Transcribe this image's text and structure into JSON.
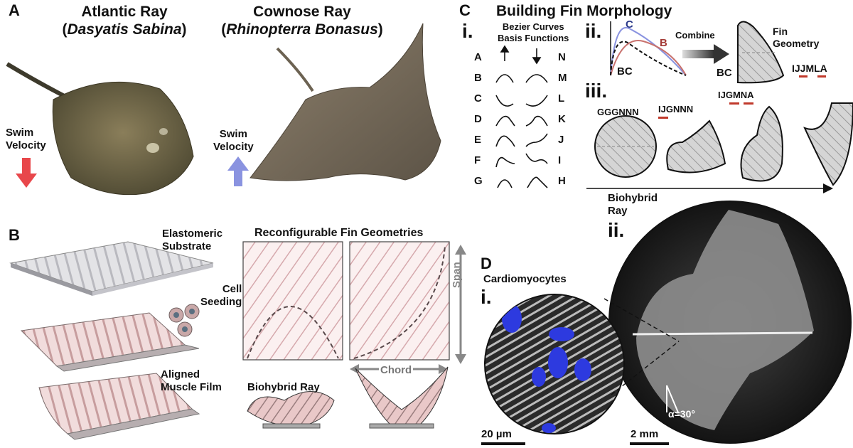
{
  "panel_a": {
    "letter": "A",
    "atlantic": {
      "name": "Atlantic Ray",
      "species_open": "(",
      "species": "Dasyatis Sabina",
      "species_close": ")"
    },
    "cownose": {
      "name": "Cownose Ray",
      "species_open": "(",
      "species": "Rhinopterra Bonasus",
      "species_close": ")"
    },
    "swim_label_1": "Swim",
    "swim_label_2": "Velocity",
    "colors": {
      "atlantic_arrow": "#e8474b",
      "cownose_arrow": "#8a93e0"
    }
  },
  "panel_b": {
    "letter": "B",
    "elastomeric_1": "Elastomeric",
    "elastomeric_2": "Substrate",
    "cell_1": "Cell",
    "cell_2": "Seeding",
    "aligned_1": "Aligned",
    "aligned_2": "Muscle Film",
    "reconfig_title": "Reconfigurable Fin Geometries",
    "span": "Span",
    "chord": "Chord",
    "biohybrid_ray": "Biohybrid Ray"
  },
  "panel_c": {
    "letter": "C",
    "title": "Building Fin Morphology",
    "i_label": "i.",
    "bezier_1": "Bezier Curves",
    "bezier_2": "Basis Functions",
    "left_letters": [
      "A",
      "B",
      "C",
      "D",
      "E",
      "F",
      "G"
    ],
    "right_letters": [
      "N",
      "M",
      "L",
      "K",
      "J",
      "I",
      "H"
    ],
    "ii_label": "ii.",
    "curve_c": "C",
    "curve_b": "B",
    "bc": "BC",
    "combine": "Combine",
    "fin_geometry_1": "Fin",
    "fin_geometry_2": "Geometry",
    "bc_2": "BC",
    "code_ijjmla": "IJJMLA",
    "iii_label": "iii.",
    "code_gggnnn": "GGGNNN",
    "code_ijgnnn": "IJGNNN",
    "code_ijgmna": "IJGMNA",
    "biohybrid_1": "Biohybrid",
    "biohybrid_2": "Ray",
    "ii_label_2": "ii.",
    "colors": {
      "curve_c": "#8a93e0",
      "curve_b": "#c8716d",
      "mark": "#c0392b"
    }
  },
  "panel_d": {
    "letter": "D",
    "cardio": "Cardiomyocytes",
    "i_label": "i.",
    "scale_um": "20 µm",
    "scale_mm": "2 mm",
    "alpha": "α=30°"
  }
}
